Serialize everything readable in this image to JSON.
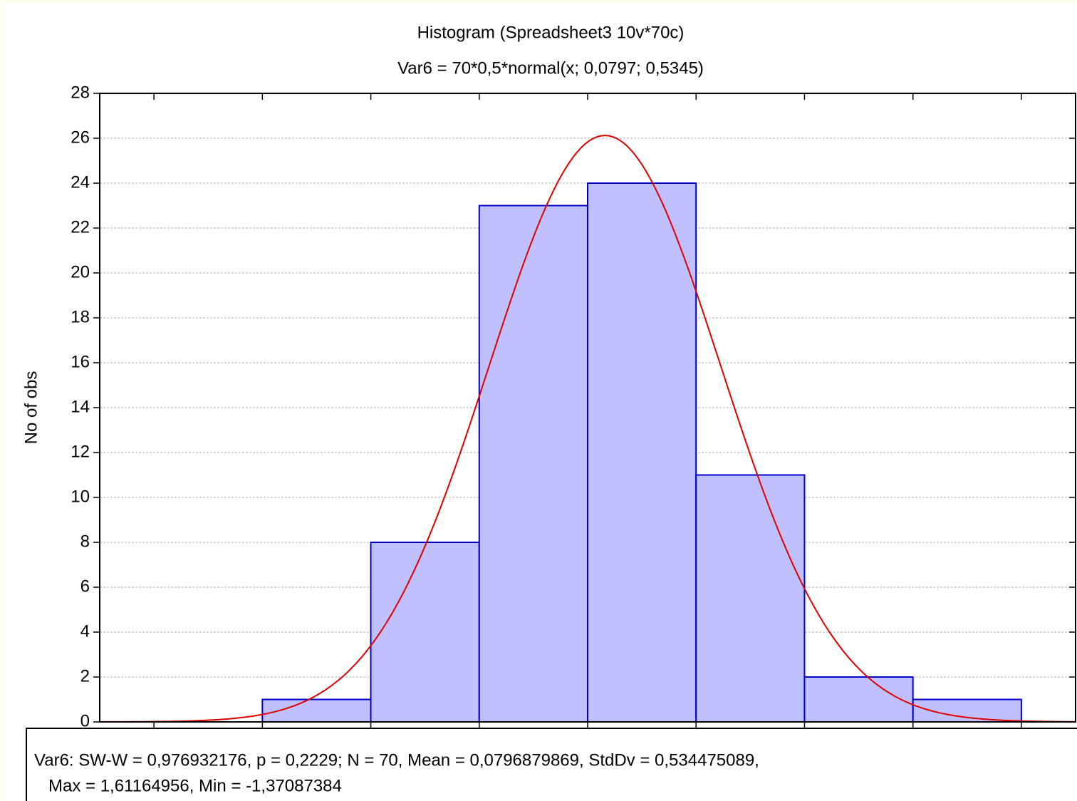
{
  "chart_data": {
    "type": "histogram",
    "title": "Histogram (Spreadsheet3 10v*70c)",
    "subtitle": "Var6 = 70*0,5*normal(x; 0,0797; 0,5345)",
    "y_label": "No of obs",
    "bins": [
      -1.5,
      -1,
      -0.5,
      0,
      0.5,
      1,
      1.5,
      2
    ],
    "values": [
      1,
      8,
      23,
      24,
      11,
      2,
      1
    ],
    "color": "#c0c0ff",
    "edge_color": "#0000cc",
    "xlim": [
      -2.25,
      2.25
    ],
    "xticks": [
      -2,
      -1.5,
      -1,
      -0.5,
      0,
      0.5,
      1,
      1.5,
      2
    ],
    "ylim": [
      0,
      28
    ],
    "yticks": [
      0,
      2,
      4,
      6,
      8,
      10,
      12,
      14,
      16,
      18,
      20,
      22,
      24,
      26,
      28
    ],
    "grid": true,
    "normal_fit": {
      "n": 70,
      "bin_width": 0.5,
      "mean": 0.0797,
      "sd": 0.5345,
      "color": "#e00000"
    },
    "stats_lines": [
      "Var6:   SW-W = 0,976932176, p = 0,2229;  N = 70, Mean = 0,0796879869, StdDv = 0,534475089,",
      "Max = 1,61164956, Min = -1,37087384"
    ]
  }
}
